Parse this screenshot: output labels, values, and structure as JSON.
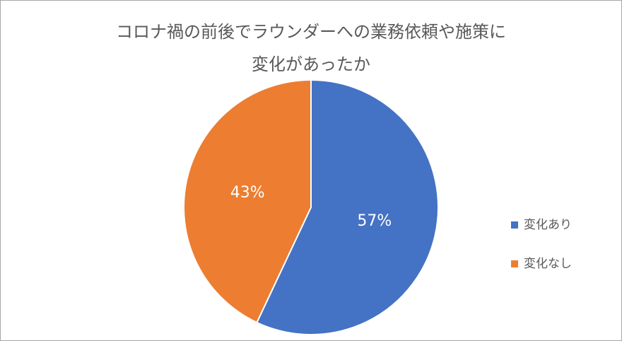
{
  "chart_data": {
    "type": "pie",
    "title": [
      "コロナ禍の前後でラウンダーへの業務依頼や施策に",
      "変化があったか"
    ],
    "categories": [
      "変化あり",
      "変化なし"
    ],
    "values": [
      57,
      43
    ],
    "value_labels": [
      "57%",
      "43%"
    ],
    "colors": [
      "#4472c4",
      "#ed7d31"
    ],
    "legend": "right"
  }
}
